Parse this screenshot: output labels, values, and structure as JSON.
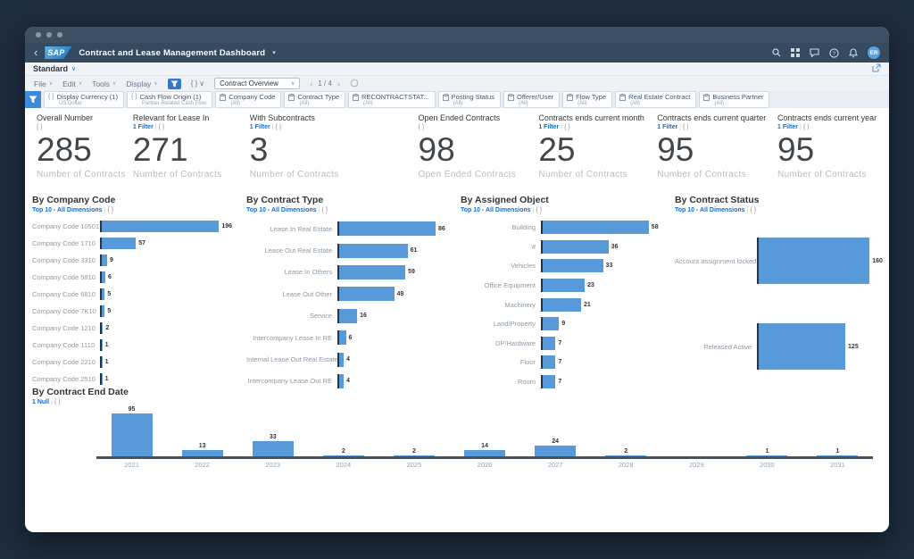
{
  "shell": {
    "title": "Contract and Lease Management Dashboard",
    "avatar_initials": "ER"
  },
  "variant_bar": {
    "label": "Standard"
  },
  "menubar": {
    "items": [
      "File",
      "Edit",
      "Tools",
      "Display"
    ],
    "braces_label": "{ }",
    "view_selector": "Contract Overview",
    "pagination": "1 / 4"
  },
  "filterbar": {
    "chips": [
      {
        "icon": "braces",
        "label": "Display Currency (1)",
        "value": "US Dollar"
      },
      {
        "icon": "braces",
        "label": "Cash Flow Origin (1)",
        "value": "Partner-Related Cash Flow"
      },
      {
        "icon": "clipboard",
        "label": "Company Code",
        "value": "(All)"
      },
      {
        "icon": "clipboard",
        "label": "Contract Type",
        "value": "(All)"
      },
      {
        "icon": "clipboard",
        "label": "RECONTRACTSTAT...",
        "value": "(All)"
      },
      {
        "icon": "clipboard",
        "label": "Posting Status",
        "value": "(All)"
      },
      {
        "icon": "clipboard",
        "label": "Offerer/User",
        "value": "(All)"
      },
      {
        "icon": "clipboard",
        "label": "Flow Type",
        "value": "(All)"
      },
      {
        "icon": "clipboard",
        "label": "Real Estate Contract",
        "value": "(All)"
      },
      {
        "icon": "clipboard",
        "label": "Business Partner",
        "value": "(All)"
      }
    ]
  },
  "kpis": [
    {
      "title": "Overall Number",
      "filter_link": null,
      "braces": "{ }",
      "value": "285",
      "unit": "Number of Contracts"
    },
    {
      "title": "Relevant for Lease In",
      "filter_link": "1 Filter",
      "braces": "{ }",
      "value": "271",
      "unit": "Number of Contracts"
    },
    {
      "title": "With Subcontracts",
      "filter_link": "1 Filter",
      "braces": "{ }",
      "value": "3",
      "unit": "Number of Contracts"
    },
    {
      "title": "Open Ended Contracts",
      "filter_link": null,
      "braces": "{ }",
      "value": "98",
      "unit": "Open Ended Contracts"
    },
    {
      "title": "Contracts ends current month",
      "filter_link": "1 Filter",
      "braces": "{ }",
      "value": "25",
      "unit": "Number of Contracts"
    },
    {
      "title": "Contracts ends current quarter",
      "filter_link": "1 Filter",
      "braces": "{ }",
      "value": "95",
      "unit": "Number of Contracts"
    },
    {
      "title": "Contracts ends current year",
      "filter_link": "1 Filter",
      "braces": "{ }",
      "value": "95",
      "unit": "Number of Contracts"
    }
  ],
  "chart_data": [
    {
      "type": "bar",
      "title": "By Company Code",
      "subtitle_link": "Top 10 - All Dimensions",
      "subtitle_extra": "{ }",
      "categories": [
        "Company Code 10501",
        "Company Code 1710",
        "Company Code 3310",
        "Company Code 5810",
        "Company Code 6810",
        "Company Code 7K10",
        "Company Code 1210",
        "Company Code 1110",
        "Company Code 2210",
        "Company Code 2510"
      ],
      "values": [
        196,
        57,
        9,
        6,
        5,
        5,
        2,
        1,
        1,
        1
      ]
    },
    {
      "type": "bar",
      "title": "By Contract Type",
      "subtitle_link": "Top 10 - All Dimensions",
      "subtitle_extra": "{ }",
      "categories": [
        "Lease In Real Estate",
        "Lease Out Real Estate",
        "Lease In Others",
        "Lease Out Other",
        "Service",
        "Intercompany Lease In RE",
        "Internal Lease Out Real Estate",
        "Intercompany Lease Out RE"
      ],
      "values": [
        86,
        61,
        59,
        49,
        16,
        6,
        4,
        4
      ]
    },
    {
      "type": "bar",
      "title": "By Assigned Object",
      "subtitle_link": "Top 10 - All Dimensions",
      "subtitle_extra": "{ }",
      "categories": [
        "Building",
        "#",
        "Vehicles",
        "Office Equipment",
        "Machinery",
        "Land/Property",
        "DP/Hardware",
        "Floor",
        "Room"
      ],
      "values": [
        58,
        36,
        33,
        23,
        21,
        9,
        7,
        7,
        7
      ]
    },
    {
      "type": "bar",
      "title": "By Contract Status",
      "subtitle_link": "Top 10 - All Dimensions",
      "subtitle_extra": "{ }",
      "categories": [
        "Account assignment locked",
        "Released Active"
      ],
      "values": [
        160,
        125
      ]
    },
    {
      "type": "column",
      "title": "By Contract End Date",
      "subtitle_link": "1 Null",
      "subtitle_extra": "{ }",
      "categories": [
        "2021",
        "2022",
        "2023",
        "2024",
        "2025",
        "2026",
        "2027",
        "2028",
        "2029",
        "2030",
        "2031"
      ],
      "values": [
        95,
        13,
        33,
        2,
        2,
        14,
        24,
        2,
        null,
        1,
        1
      ],
      "ylim": [
        0,
        100
      ]
    }
  ],
  "colors": {
    "bar": "#5899da",
    "link": "#0a6ed1",
    "shell": "#354a5f",
    "accent_filter_tile": "#3f8ad8"
  }
}
